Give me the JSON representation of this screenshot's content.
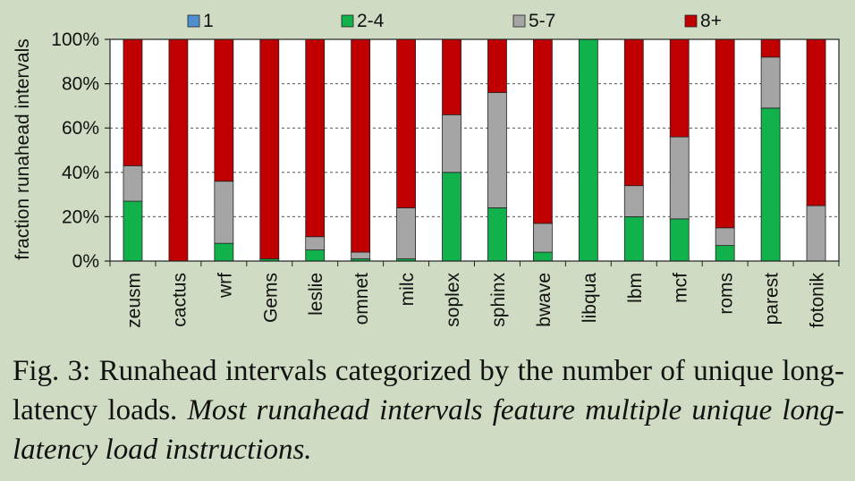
{
  "chart_data": {
    "type": "bar",
    "stacked": true,
    "ylabel": "fraction runahead intervals",
    "ylim": [
      0,
      100
    ],
    "yticks": [
      0,
      20,
      40,
      60,
      80,
      100
    ],
    "ytick_labels": [
      "0%",
      "20%",
      "40%",
      "60%",
      "80%",
      "100%"
    ],
    "grid": "horizontal dashed",
    "legend_position": "top",
    "categories": [
      "zeusm",
      "cactus",
      "wrf",
      "Gems",
      "leslie",
      "omnet",
      "milc",
      "soplex",
      "sphinx",
      "bwave",
      "libqua",
      "lbm",
      "mcf",
      "roms",
      "parest",
      "fotonik"
    ],
    "series": [
      {
        "name": "1",
        "color": "#4f8fd0",
        "values": [
          0,
          0,
          0,
          0,
          0,
          0,
          0,
          0,
          0,
          0,
          0,
          0,
          0,
          0,
          0,
          0
        ]
      },
      {
        "name": "2-4",
        "color": "#11b14c",
        "values": [
          27,
          0,
          8,
          1,
          5,
          1,
          1,
          40,
          24,
          4,
          100,
          20,
          19,
          7,
          69,
          0
        ]
      },
      {
        "name": "5-7",
        "color": "#a5a5a5",
        "values": [
          16,
          0,
          28,
          0,
          6,
          3,
          23,
          26,
          52,
          13,
          0,
          14,
          37,
          8,
          23,
          25
        ]
      },
      {
        "name": "8+",
        "color": "#c00000",
        "values": [
          57,
          100,
          64,
          99,
          89,
          96,
          76,
          34,
          24,
          83,
          0,
          66,
          44,
          85,
          8,
          75
        ]
      }
    ]
  },
  "caption": {
    "prefix": "Fig. 3: Runahead intervals categorized by the number of unique long-latency loads. ",
    "emphasis": "Most runahead intervals feature multiple unique long-latency load instructions."
  }
}
